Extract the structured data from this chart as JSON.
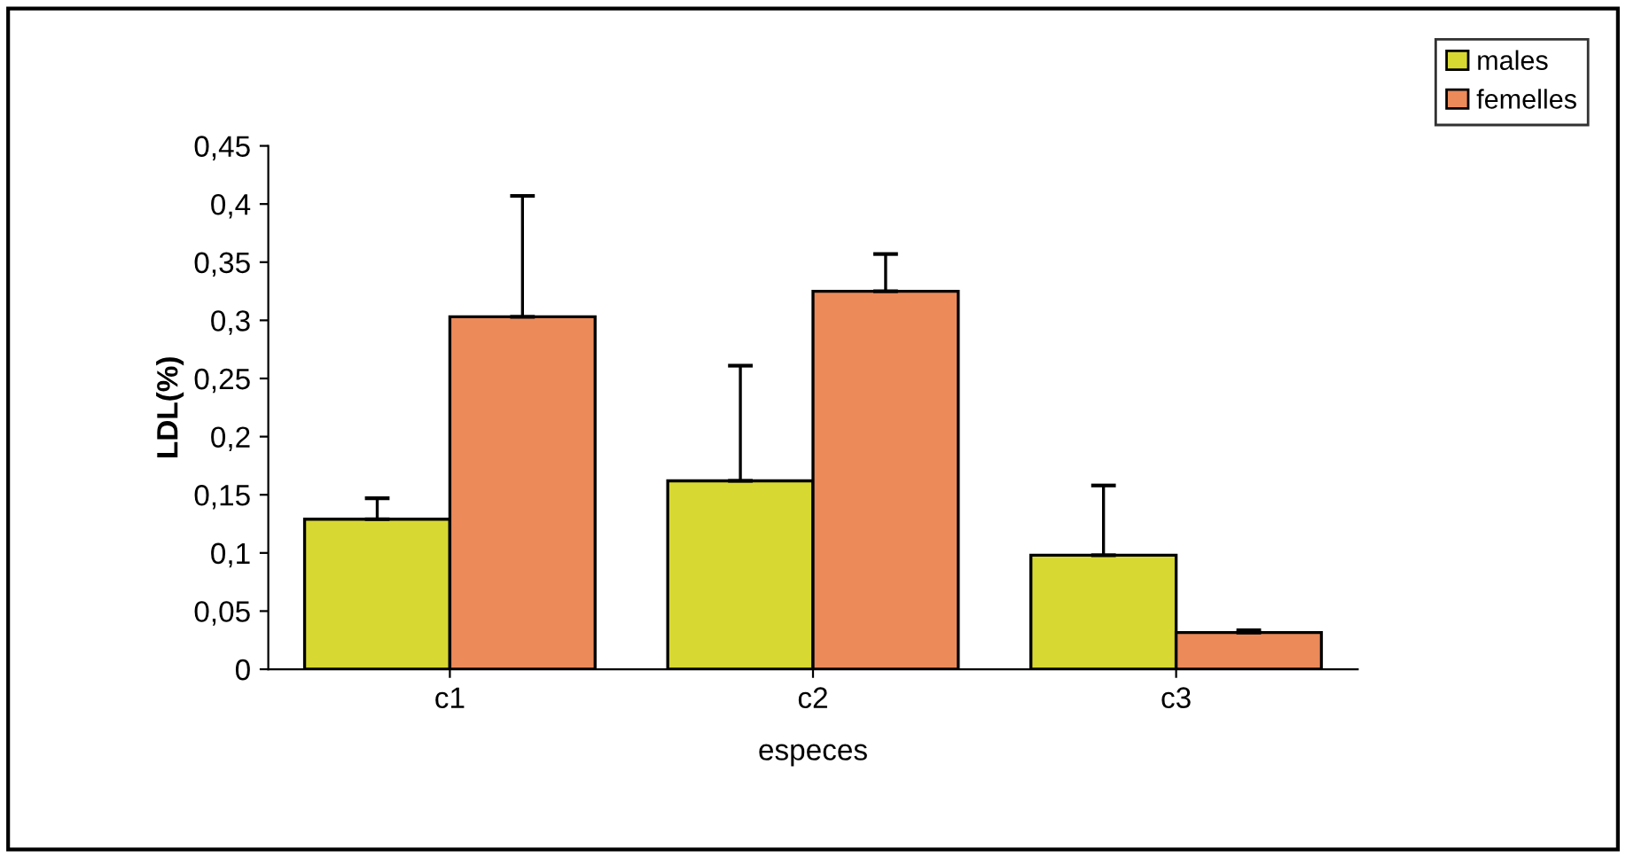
{
  "chart_data": {
    "type": "bar",
    "xlabel": "especes",
    "ylabel": "LDL(%)",
    "categories": [
      "c1",
      "c2",
      "c3"
    ],
    "series": [
      {
        "name": "males",
        "color": "#d8d832",
        "values": [
          0.129,
          0.162,
          0.098
        ],
        "errors": [
          0.018,
          0.099,
          0.06
        ]
      },
      {
        "name": "femelles",
        "color": "#ec8a5a",
        "values": [
          0.303,
          0.325,
          0.0315
        ],
        "errors": [
          0.104,
          0.032,
          0.002
        ]
      }
    ],
    "ylim": [
      0,
      0.45
    ],
    "yticks": [
      0,
      {
        "value": 0.05,
        "label": "0,05"
      },
      {
        "value": 0.1,
        "label": "0,1"
      },
      {
        "value": 0.15,
        "label": "0,15"
      },
      {
        "value": 0.2,
        "label": "0,2"
      },
      {
        "value": 0.25,
        "label": "0,25"
      },
      {
        "value": 0.3,
        "label": "0,3"
      },
      {
        "value": 0.35,
        "label": "0,35"
      },
      {
        "value": 0.4,
        "label": "0,4"
      },
      {
        "value": 0.45,
        "label": "0,45"
      }
    ],
    "grid": false,
    "legend": "top right"
  }
}
